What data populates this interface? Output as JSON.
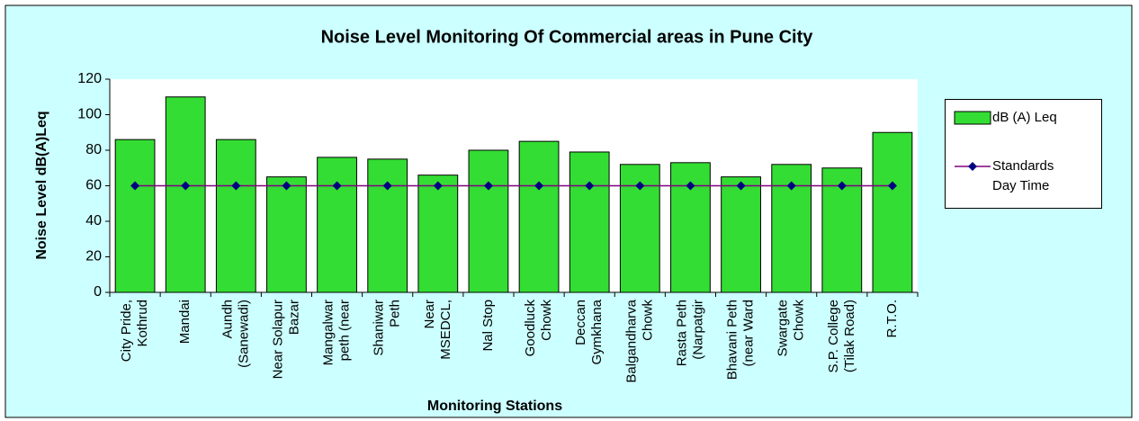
{
  "chart_data": {
    "type": "bar",
    "title": "Noise Level Monitoring Of Commercial areas in Pune City",
    "x_label": "Monitoring Stations",
    "y_label": "Noise Level dB(A)Leq",
    "categories": [
      [
        "City Pride,",
        "Kothrud"
      ],
      [
        "Mandai"
      ],
      [
        "Aundh",
        "(Sanewadi)"
      ],
      [
        "Near Solapur",
        "Bazar"
      ],
      [
        "Mangalwar",
        "peth (near"
      ],
      [
        "Shaniwar",
        "Peth"
      ],
      [
        "Near",
        "MSEDCL,"
      ],
      [
        "Nal Stop"
      ],
      [
        "Goodluck",
        "Chowk"
      ],
      [
        "Deccan",
        "Gymkhana"
      ],
      [
        "Balgandharva",
        "Chowk"
      ],
      [
        "Rasta Peth",
        "(Narpatgir"
      ],
      [
        "Bhavani Peth",
        "(near Ward"
      ],
      [
        "Swargate",
        "Chowk"
      ],
      [
        "S.P. College",
        "(Tilak Road)"
      ],
      [
        "R.T.O."
      ]
    ],
    "series": [
      {
        "name": "dB (A) Leq",
        "type": "bar",
        "color": "#33dd33",
        "values": [
          86,
          110,
          86,
          65,
          76,
          75,
          66,
          80,
          85,
          79,
          72,
          73,
          65,
          72,
          70,
          90
        ]
      },
      {
        "name": "Standards Day Time",
        "type": "line",
        "color": "#800080",
        "marker_color": "#000080",
        "values": [
          60,
          60,
          60,
          60,
          60,
          60,
          60,
          60,
          60,
          60,
          60,
          60,
          60,
          60,
          60,
          60
        ]
      }
    ],
    "ylim": [
      0,
      120
    ],
    "yticks": [
      0,
      20,
      40,
      60,
      80,
      100,
      120
    ],
    "grid": false,
    "legend": "right"
  }
}
